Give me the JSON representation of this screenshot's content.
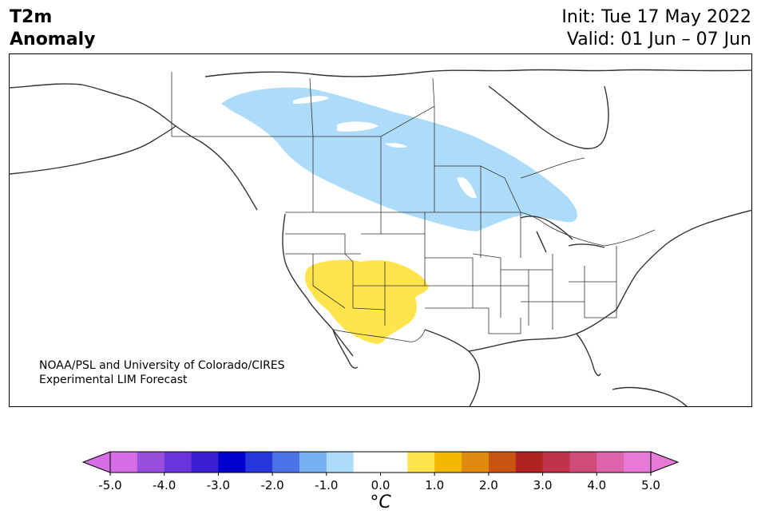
{
  "header": {
    "title_line1": "T2m",
    "title_line2": "Anomaly",
    "init": "Init: Tue 17 May 2022",
    "valid": "Valid: 01 Jun – 07 Jun"
  },
  "credit": {
    "line1": "NOAA/PSL and University of Colorado/CIRES",
    "line2": "Experimental LIM Forecast"
  },
  "colorbar": {
    "unit": "°C",
    "tick_labels": [
      "-5.0",
      "-4.0",
      "-3.0",
      "-2.0",
      "-1.0",
      "0.0",
      "1.0",
      "2.0",
      "3.0",
      "4.0",
      "5.0"
    ],
    "extend_low_color": "#d66ee6",
    "extend_high_color": "#e67ad6",
    "colors": [
      "#d66ee6",
      "#9a4fdc",
      "#6b35dc",
      "#3b1fd3",
      "#0000cc",
      "#2436dc",
      "#4b73e6",
      "#74b0f2",
      "#addcfa",
      "#ffffff",
      "#ffffff",
      "#ffe44d",
      "#f5b800",
      "#e08a0f",
      "#c95513",
      "#b12321",
      "#c0344a",
      "#d04c78",
      "#dc64aa",
      "#e67ad6"
    ]
  },
  "map": {
    "region": "North America",
    "anomaly_regions": [
      {
        "name": "cool-anomaly-canada",
        "color": "#addcfa",
        "value_range": "-1.0 to -0.5"
      },
      {
        "name": "warm-anomaly-southwest",
        "color": "#ffe44d",
        "value_range": "0.5 to 1.0"
      }
    ]
  }
}
